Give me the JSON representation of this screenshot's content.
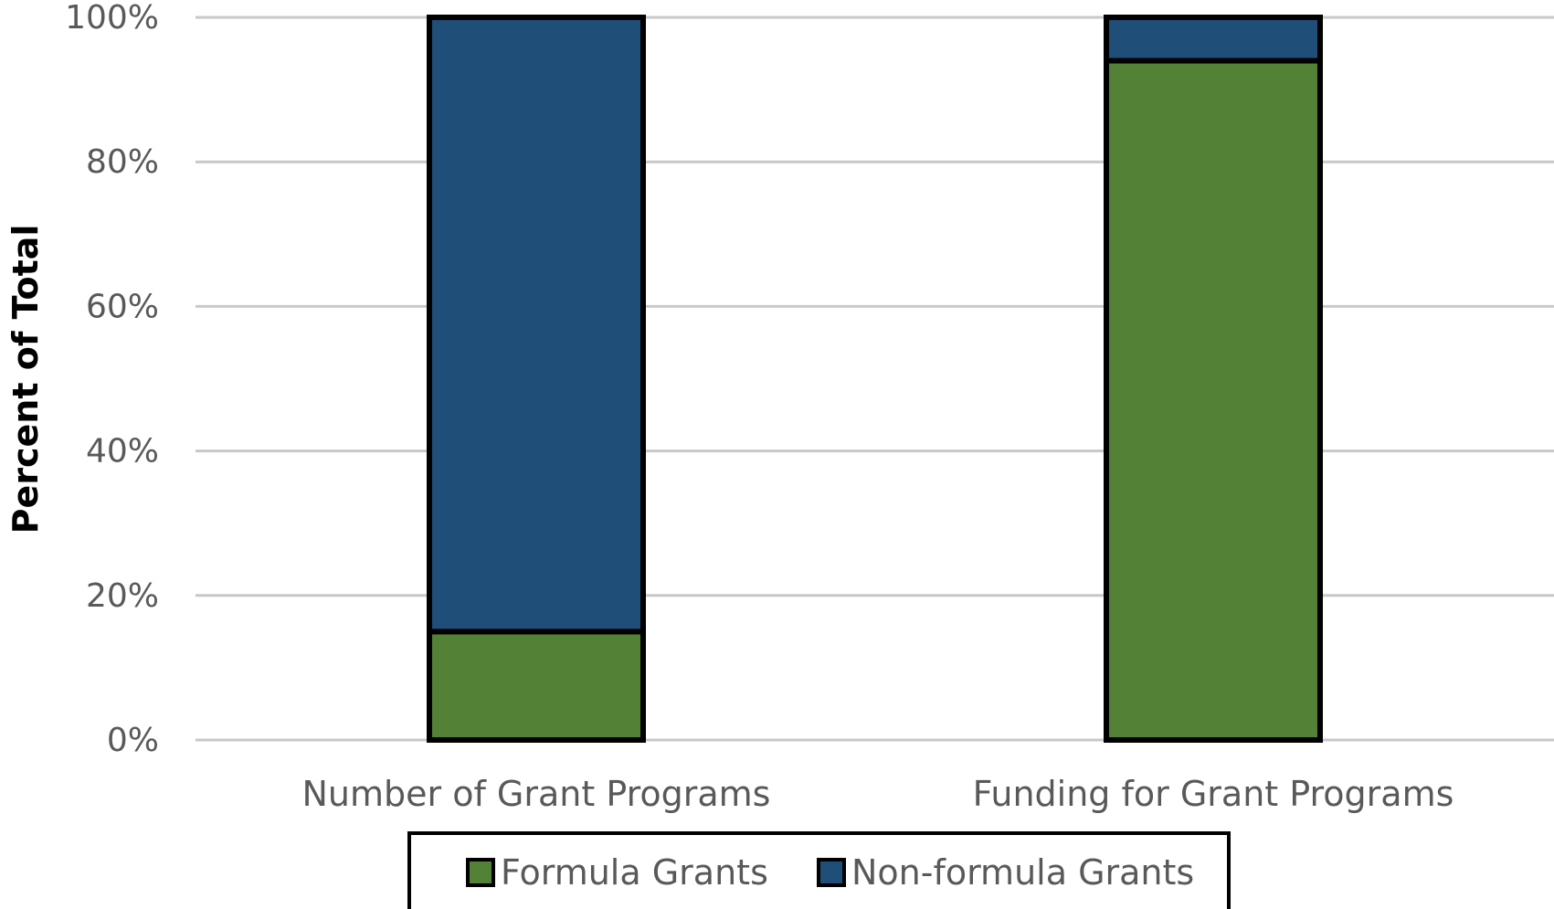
{
  "chart_data": {
    "type": "bar",
    "stacked": true,
    "title": "",
    "xlabel": "",
    "ylabel": "Percent of Total",
    "ylim": [
      0,
      100
    ],
    "y_ticks": [
      0,
      20,
      40,
      60,
      80,
      100
    ],
    "y_tick_labels": [
      "0%",
      "20%",
      "40%",
      "60%",
      "80%",
      "100%"
    ],
    "categories": [
      "Number of Grant Programs",
      "Funding for Grant Programs"
    ],
    "series": [
      {
        "name": "Formula Grants",
        "values": [
          15,
          94
        ],
        "color": "#538135"
      },
      {
        "name": "Non-formula Grants",
        "values": [
          85,
          6
        ],
        "color": "#1F4E79"
      }
    ],
    "grid": true,
    "legend_position": "bottom",
    "bar_outline_color": "#000000",
    "grid_color": "#c8c8c8"
  }
}
